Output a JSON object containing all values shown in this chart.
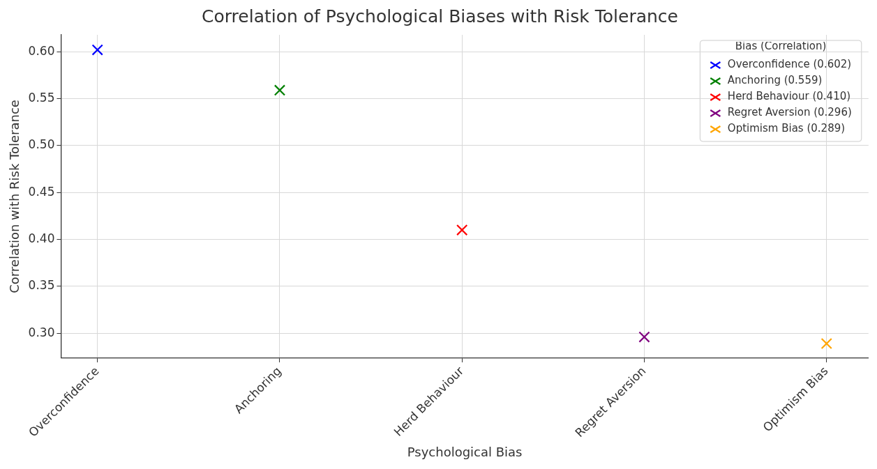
{
  "chart_data": {
    "type": "scatter",
    "title": "Correlation of Psychological Biases with Risk Tolerance",
    "xlabel": "Psychological Bias",
    "ylabel": "Correlation with Risk Tolerance",
    "legend_title": "Bias (Correlation)",
    "categories": [
      "Overconfidence",
      "Anchoring",
      "Herd Behaviour",
      "Regret Aversion",
      "Optimism Bias"
    ],
    "series": [
      {
        "name": "Overconfidence (0.602)",
        "color": "#0000ff",
        "values": [
          0.602,
          null,
          null,
          null,
          null
        ]
      },
      {
        "name": "Anchoring (0.559)",
        "color": "#008000",
        "values": [
          null,
          0.559,
          null,
          null,
          null
        ]
      },
      {
        "name": "Herd Behaviour (0.410)",
        "color": "#ff0000",
        "values": [
          null,
          null,
          0.41,
          null,
          null
        ]
      },
      {
        "name": "Regret Aversion (0.296)",
        "color": "#800080",
        "values": [
          null,
          null,
          null,
          0.296,
          null
        ]
      },
      {
        "name": "Optimism Bias (0.289)",
        "color": "#ffa500",
        "values": [
          null,
          null,
          null,
          null,
          0.289
        ]
      }
    ],
    "ylim": [
      0.2734,
      0.618
    ],
    "yticks": [
      {
        "value": 0.3,
        "label": "0.30"
      },
      {
        "value": 0.35,
        "label": "0.35"
      },
      {
        "value": 0.4,
        "label": "0.40"
      },
      {
        "value": 0.45,
        "label": "0.45"
      },
      {
        "value": 0.5,
        "label": "0.50"
      },
      {
        "value": 0.55,
        "label": "0.55"
      },
      {
        "value": 0.6,
        "label": "0.60"
      }
    ],
    "grid": true,
    "legend": "top right",
    "marker": "cross"
  }
}
